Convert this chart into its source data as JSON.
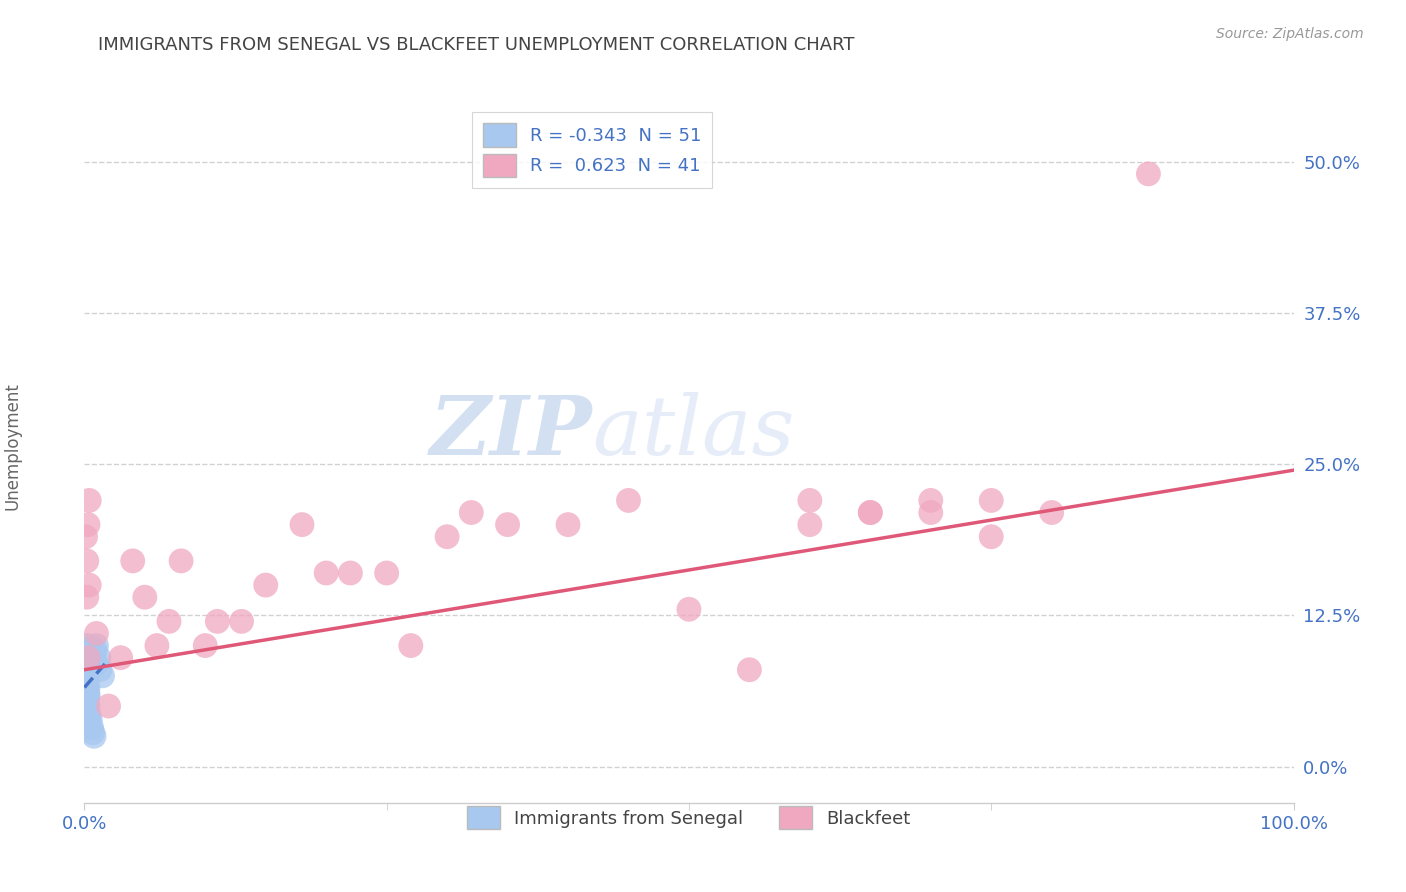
{
  "title": "IMMIGRANTS FROM SENEGAL VS BLACKFEET UNEMPLOYMENT CORRELATION CHART",
  "source": "Source: ZipAtlas.com",
  "ylabel": "Unemployment",
  "xlim": [
    0,
    1.0
  ],
  "ylim": [
    -0.03,
    0.56
  ],
  "yticks": [
    0.0,
    0.125,
    0.25,
    0.375,
    0.5
  ],
  "ytick_labels": [
    "0.0%",
    "12.5%",
    "25.0%",
    "37.5%",
    "50.0%"
  ],
  "xticks": [
    0.0,
    1.0
  ],
  "xtick_labels": [
    "0.0%",
    "100.0%"
  ],
  "series": [
    {
      "name": "Immigrants from Senegal",
      "R": -0.343,
      "N": 51,
      "color": "#a8c8f0",
      "line_color": "#4472c4",
      "line_style": "dashed",
      "x": [
        0.001,
        0.001,
        0.002,
        0.002,
        0.003,
        0.003,
        0.004,
        0.005,
        0.005,
        0.006,
        0.007,
        0.008,
        0.009,
        0.01,
        0.01,
        0.012,
        0.013,
        0.015,
        0.002,
        0.003,
        0.001,
        0.002,
        0.003,
        0.004,
        0.005,
        0.001,
        0.002,
        0.003,
        0.001,
        0.002,
        0.003,
        0.001,
        0.002,
        0.002,
        0.001,
        0.001,
        0.002,
        0.001,
        0.001,
        0.002,
        0.003,
        0.001,
        0.002,
        0.003,
        0.002,
        0.001,
        0.004,
        0.005,
        0.006,
        0.007,
        0.008
      ],
      "y": [
        0.095,
        0.09,
        0.085,
        0.1,
        0.092,
        0.088,
        0.095,
        0.082,
        0.098,
        0.09,
        0.087,
        0.093,
        0.096,
        0.1,
        0.085,
        0.09,
        0.08,
        0.075,
        0.07,
        0.065,
        0.068,
        0.072,
        0.078,
        0.082,
        0.085,
        0.06,
        0.055,
        0.05,
        0.048,
        0.052,
        0.058,
        0.062,
        0.066,
        0.058,
        0.075,
        0.08,
        0.085,
        0.09,
        0.07,
        0.065,
        0.06,
        0.055,
        0.05,
        0.045,
        0.04,
        0.035,
        0.042,
        0.038,
        0.032,
        0.028,
        0.025
      ]
    },
    {
      "name": "Blackfeet",
      "R": 0.623,
      "N": 41,
      "color": "#f0a8c0",
      "line_color": "#e05878",
      "line_style": "solid",
      "x": [
        0.001,
        0.002,
        0.002,
        0.003,
        0.003,
        0.004,
        0.004,
        0.01,
        0.02,
        0.03,
        0.04,
        0.05,
        0.06,
        0.07,
        0.08,
        0.1,
        0.11,
        0.13,
        0.15,
        0.18,
        0.2,
        0.22,
        0.25,
        0.27,
        0.3,
        0.32,
        0.35,
        0.4,
        0.45,
        0.5,
        0.55,
        0.6,
        0.65,
        0.7,
        0.75,
        0.8,
        0.6,
        0.65,
        0.7,
        0.75,
        0.88
      ],
      "y": [
        0.19,
        0.17,
        0.14,
        0.2,
        0.09,
        0.22,
        0.15,
        0.11,
        0.05,
        0.09,
        0.17,
        0.14,
        0.1,
        0.12,
        0.17,
        0.1,
        0.12,
        0.12,
        0.15,
        0.2,
        0.16,
        0.16,
        0.16,
        0.1,
        0.19,
        0.21,
        0.2,
        0.2,
        0.22,
        0.13,
        0.08,
        0.2,
        0.21,
        0.22,
        0.19,
        0.21,
        0.22,
        0.21,
        0.21,
        0.22,
        0.49
      ]
    }
  ],
  "watermark_zip": "ZIP",
  "watermark_atlas": "atlas",
  "background_color": "#ffffff",
  "grid_color": "#cccccc",
  "title_color": "#444444",
  "tick_color": "#4472c4"
}
